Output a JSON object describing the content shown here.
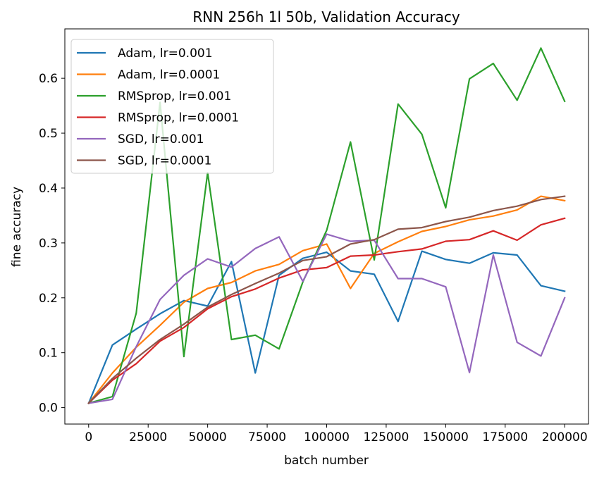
{
  "chart_data": {
    "type": "line",
    "title": "RNN 256h 1l 50b, Validation Accuracy",
    "xlabel": "batch number",
    "ylabel": "fine accuracy",
    "xlim": [
      -10000,
      210000
    ],
    "ylim": [
      -0.03,
      0.69
    ],
    "x_ticks": [
      0,
      25000,
      50000,
      75000,
      100000,
      125000,
      150000,
      175000,
      200000
    ],
    "y_ticks": [
      0.0,
      0.1,
      0.2,
      0.3,
      0.4,
      0.5,
      0.6
    ],
    "x_tick_labels": [
      "0",
      "25000",
      "50000",
      "75000",
      "100000",
      "125000",
      "150000",
      "175000",
      "200000"
    ],
    "y_tick_labels": [
      "0.0",
      "0.1",
      "0.2",
      "0.3",
      "0.4",
      "0.5",
      "0.6"
    ],
    "grid": false,
    "legend_position": "top-left",
    "x": [
      0,
      10000,
      20000,
      30000,
      40000,
      50000,
      60000,
      70000,
      80000,
      90000,
      100000,
      110000,
      120000,
      130000,
      140000,
      150000,
      160000,
      170000,
      180000,
      190000,
      200000
    ],
    "series": [
      {
        "name": "Adam, lr=0.001",
        "color": "#1f77b4",
        "values": [
          0.008,
          0.114,
          0.143,
          0.171,
          0.195,
          0.185,
          0.266,
          0.063,
          0.241,
          0.272,
          0.283,
          0.249,
          0.243,
          0.157,
          0.285,
          0.27,
          0.263,
          0.282,
          0.278,
          0.222,
          0.212
        ]
      },
      {
        "name": "Adam, lr=0.0001",
        "color": "#ff7f0e",
        "values": [
          0.008,
          0.063,
          0.11,
          0.15,
          0.192,
          0.217,
          0.228,
          0.249,
          0.261,
          0.286,
          0.298,
          0.217,
          0.281,
          0.302,
          0.321,
          0.33,
          0.342,
          0.349,
          0.36,
          0.385,
          0.377
        ]
      },
      {
        "name": "RMSprop, lr=0.001",
        "color": "#2ca02c",
        "values": [
          0.008,
          0.02,
          0.172,
          0.556,
          0.093,
          0.428,
          0.124,
          0.132,
          0.107,
          0.229,
          0.323,
          0.484,
          0.269,
          0.553,
          0.498,
          0.364,
          0.599,
          0.627,
          0.56,
          0.655,
          0.558
        ]
      },
      {
        "name": "RMSprop, lr=0.0001",
        "color": "#d62728",
        "values": [
          0.008,
          0.05,
          0.08,
          0.121,
          0.146,
          0.18,
          0.202,
          0.216,
          0.236,
          0.251,
          0.255,
          0.276,
          0.278,
          0.284,
          0.289,
          0.303,
          0.306,
          0.322,
          0.305,
          0.333,
          0.345
        ]
      },
      {
        "name": "SGD, lr=0.001",
        "color": "#9467bd",
        "values": [
          0.008,
          0.015,
          0.111,
          0.197,
          0.241,
          0.271,
          0.256,
          0.29,
          0.311,
          0.23,
          0.316,
          0.303,
          0.305,
          0.235,
          0.235,
          0.22,
          0.064,
          0.278,
          0.119,
          0.094,
          0.2
        ]
      },
      {
        "name": "SGD, lr=0.0001",
        "color": "#8c564b",
        "values": [
          0.008,
          0.053,
          0.09,
          0.124,
          0.152,
          0.183,
          0.206,
          0.226,
          0.245,
          0.268,
          0.275,
          0.298,
          0.306,
          0.325,
          0.328,
          0.339,
          0.347,
          0.359,
          0.367,
          0.379,
          0.385
        ]
      }
    ]
  }
}
